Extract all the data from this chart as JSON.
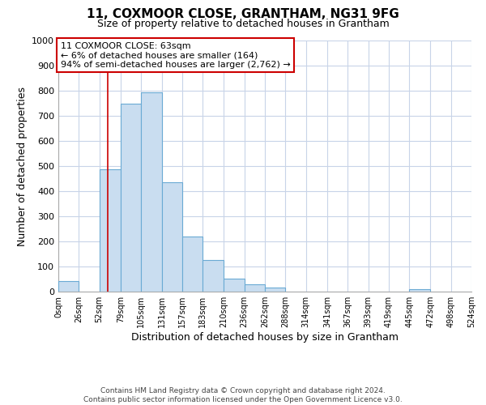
{
  "title": "11, COXMOOR CLOSE, GRANTHAM, NG31 9FG",
  "subtitle": "Size of property relative to detached houses in Grantham",
  "xlabel": "Distribution of detached houses by size in Grantham",
  "ylabel": "Number of detached properties",
  "footer_line1": "Contains HM Land Registry data © Crown copyright and database right 2024.",
  "footer_line2": "Contains public sector information licensed under the Open Government Licence v3.0.",
  "annotation_title": "11 COXMOOR CLOSE: 63sqm",
  "annotation_line1": "← 6% of detached houses are smaller (164)",
  "annotation_line2": "94% of semi-detached houses are larger (2,762) →",
  "property_size": 63,
  "bin_edges": [
    0,
    26,
    52,
    79,
    105,
    131,
    157,
    183,
    210,
    236,
    262,
    288,
    314,
    341,
    367,
    393,
    419,
    445,
    472,
    498,
    524
  ],
  "bar_heights": [
    43,
    0,
    487,
    748,
    793,
    437,
    220,
    126,
    52,
    28,
    15,
    0,
    0,
    0,
    0,
    0,
    0,
    9,
    0,
    0
  ],
  "bar_color": "#c9ddf0",
  "bar_edge_color": "#6aaad4",
  "vline_color": "#cc0000",
  "vline_x": 63,
  "xlim": [
    0,
    524
  ],
  "ylim": [
    0,
    1000
  ],
  "yticks": [
    0,
    100,
    200,
    300,
    400,
    500,
    600,
    700,
    800,
    900,
    1000
  ],
  "background_color": "#ffffff",
  "grid_color": "#c8d4e8",
  "annotation_box_color": "#ffffff",
  "annotation_box_edge_color": "#cc0000",
  "tick_labels": [
    "0sqm",
    "26sqm",
    "52sqm",
    "79sqm",
    "105sqm",
    "131sqm",
    "157sqm",
    "183sqm",
    "210sqm",
    "236sqm",
    "262sqm",
    "288sqm",
    "314sqm",
    "341sqm",
    "367sqm",
    "393sqm",
    "419sqm",
    "445sqm",
    "472sqm",
    "498sqm",
    "524sqm"
  ]
}
